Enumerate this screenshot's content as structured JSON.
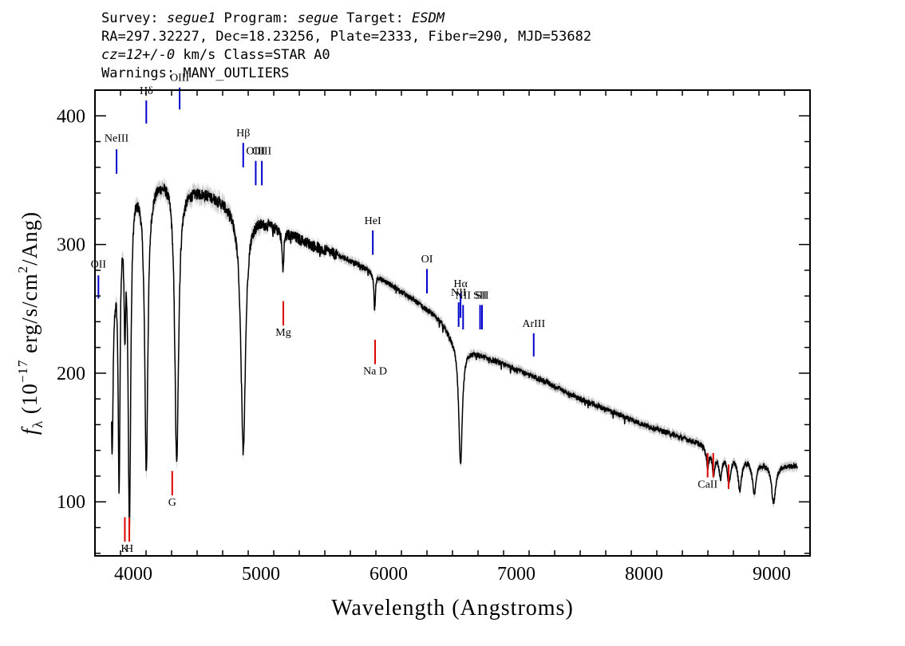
{
  "header": {
    "line1": [
      "Survey: ",
      "segue1",
      " Program: ",
      "segue",
      " Target: ",
      "ESDM"
    ],
    "line2": "RA=297.32227, Dec=18.23256, Plate=2333, Fiber=290, MJD=53682",
    "line3": [
      "cz=12+/-0",
      " km/s Class=STAR A0"
    ],
    "line4": "Warnings: MANY_OUTLIERS"
  },
  "colors": {
    "spectrum": "#000000",
    "error": "#aaaaaa",
    "emission": "#0000cc",
    "absorption": "#dd0000"
  },
  "chart_data": {
    "type": "line",
    "xlabel": "Wavelength (Angstroms)",
    "ylabel_parts": [
      "f",
      "λ",
      " (10",
      "−17",
      " erg/s/cm",
      "2",
      "/Ang)"
    ],
    "xlim": [
      3700,
      9300
    ],
    "ylim": [
      58,
      420
    ],
    "xticks": [
      4000,
      5000,
      6000,
      7000,
      8000,
      9000
    ],
    "yticks": [
      100,
      200,
      300,
      400
    ],
    "continuum": [
      [
        3830,
        248
      ],
      [
        3900,
        330
      ],
      [
        4000,
        352
      ],
      [
        4100,
        347
      ],
      [
        4200,
        352
      ],
      [
        4300,
        355
      ],
      [
        4400,
        345
      ],
      [
        4500,
        343
      ],
      [
        4600,
        340
      ],
      [
        4700,
        335
      ],
      [
        4800,
        327
      ],
      [
        4900,
        325
      ],
      [
        5000,
        320
      ],
      [
        5200,
        310
      ],
      [
        5400,
        300
      ],
      [
        5600,
        292
      ],
      [
        5800,
        283
      ],
      [
        5900,
        276
      ],
      [
        6000,
        270
      ],
      [
        6200,
        257
      ],
      [
        6400,
        242
      ],
      [
        6500,
        228
      ],
      [
        6600,
        220
      ],
      [
        6800,
        211
      ],
      [
        7000,
        203
      ],
      [
        7200,
        195
      ],
      [
        7500,
        180
      ],
      [
        7800,
        168
      ],
      [
        8000,
        160
      ],
      [
        8300,
        150
      ],
      [
        8500,
        144
      ],
      [
        8700,
        137
      ],
      [
        9000,
        130
      ],
      [
        9200,
        128
      ]
    ],
    "absorption_features": [
      {
        "center": 3835,
        "depth": 110,
        "width": 8
      },
      {
        "center": 3889,
        "depth": 200,
        "width": 9
      },
      {
        "center": 3934,
        "depth": 80,
        "width": 7
      },
      {
        "center": 3970,
        "depth": 260,
        "width": 12
      },
      {
        "center": 4102,
        "depth": 220,
        "width": 15
      },
      {
        "center": 4340,
        "depth": 220,
        "width": 18
      },
      {
        "center": 4861,
        "depth": 185,
        "width": 22
      },
      {
        "center": 5172,
        "depth": 30,
        "width": 8
      },
      {
        "center": 5890,
        "depth": 28,
        "width": 6
      },
      {
        "center": 6563,
        "depth": 95,
        "width": 17
      },
      {
        "center": 8498,
        "depth": 15,
        "width": 12
      },
      {
        "center": 8545,
        "depth": 18,
        "width": 14
      },
      {
        "center": 8598,
        "depth": 20,
        "width": 15
      },
      {
        "center": 8665,
        "depth": 22,
        "width": 16
      },
      {
        "center": 8750,
        "depth": 25,
        "width": 17
      },
      {
        "center": 8863,
        "depth": 25,
        "width": 18
      },
      {
        "center": 9015,
        "depth": 30,
        "width": 20
      }
    ],
    "emission_lines": [
      {
        "label": "OII",
        "x": 3727,
        "y1": 258,
        "y2": 276,
        "label_y": 282
      },
      {
        "label": "NeIII",
        "x": 3869,
        "y1": 355,
        "y2": 374,
        "label_y": 380
      },
      {
        "label": "Hδ",
        "x": 4102,
        "y1": 394,
        "y2": 412,
        "label_y": 417
      },
      {
        "label": "OIII",
        "x": 4363,
        "y1": 405,
        "y2": 422,
        "label_y": 427
      },
      {
        "label": "Hβ",
        "x": 4861,
        "y1": 360,
        "y2": 379,
        "label_y": 384
      },
      {
        "label": "OIII",
        "x": 4959,
        "y1": 346,
        "y2": 365,
        "label_y": 370
      },
      {
        "label": "OIII",
        "x": 5007,
        "y1": 346,
        "y2": 365,
        "label_y": 370
      },
      {
        "label": "HeI",
        "x": 5876,
        "y1": 292,
        "y2": 311,
        "label_y": 316
      },
      {
        "label": "OI",
        "x": 6300,
        "y1": 262,
        "y2": 281,
        "label_y": 286
      },
      {
        "label": "NII",
        "x": 6548,
        "y1": 236,
        "y2": 255,
        "label_y": 260
      },
      {
        "label": "Hα",
        "x": 6563,
        "y1": 243,
        "y2": 262,
        "label_y": 267
      },
      {
        "label": "NII",
        "x": 6583,
        "y1": 234,
        "y2": 253,
        "label_y": 258
      },
      {
        "label": "SII",
        "x": 6716,
        "y1": 234,
        "y2": 253,
        "label_y": 258
      },
      {
        "label": "SII",
        "x": 6731,
        "y1": 234,
        "y2": 253,
        "label_y": 258
      },
      {
        "label": "ArIII",
        "x": 7136,
        "y1": 213,
        "y2": 231,
        "label_y": 236
      }
    ],
    "absorption_labels": [
      {
        "label": "K",
        "x": 3934,
        "y1": 69,
        "y2": 88,
        "label_y": 61
      },
      {
        "label": "H",
        "x": 3969,
        "y1": 69,
        "y2": 88,
        "label_y": 61
      },
      {
        "label": "G",
        "x": 4305,
        "y1": 105,
        "y2": 124,
        "label_y": 97
      },
      {
        "label": "Mg",
        "x": 5175,
        "y1": 237,
        "y2": 256,
        "label_y": 229
      },
      {
        "label": "Na D",
        "x": 5894,
        "y1": 207,
        "y2": 226,
        "label_y": 199
      },
      {
        "label": "CaII",
        "x": 8498,
        "y1": 119,
        "y2": 138,
        "label_y": 111
      },
      {
        "label": "",
        "x": 8542,
        "y1": 119,
        "y2": 138,
        "label_y": 111
      },
      {
        "label": "",
        "x": 8662,
        "y1": 110,
        "y2": 129,
        "label_y": 102
      }
    ]
  }
}
